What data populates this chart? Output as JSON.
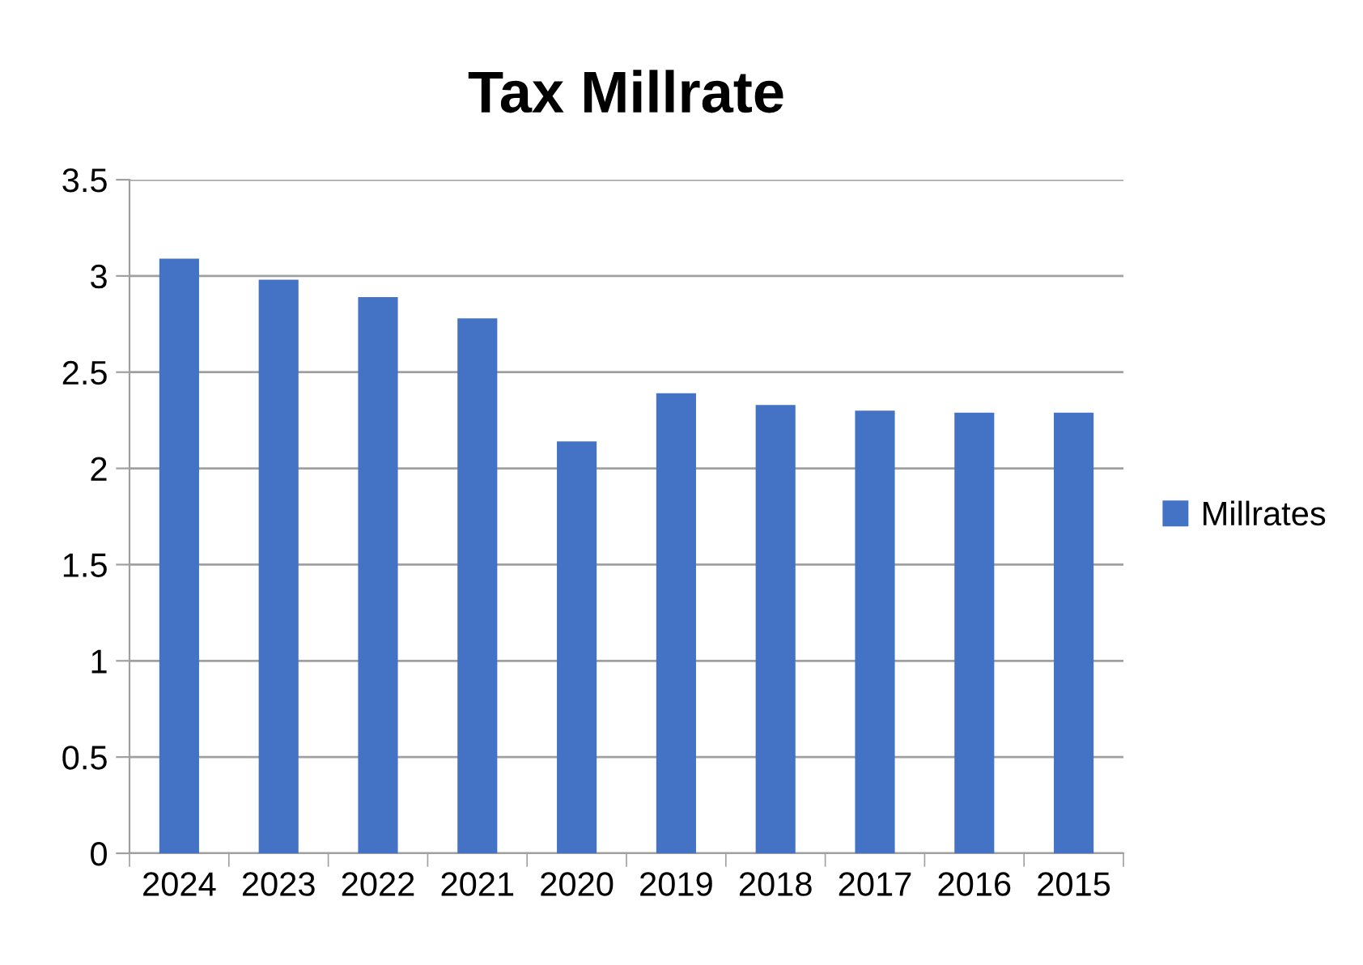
{
  "chart_data": {
    "type": "bar",
    "title": "Tax Millrate",
    "categories": [
      "2024",
      "2023",
      "2022",
      "2021",
      "2020",
      "2019",
      "2018",
      "2017",
      "2016",
      "2015"
    ],
    "series": [
      {
        "name": "Millrates",
        "color": "#4472c4",
        "values": [
          3.09,
          2.98,
          2.89,
          2.78,
          2.14,
          2.39,
          2.33,
          2.3,
          2.29,
          2.29
        ]
      }
    ],
    "ylim": [
      0,
      3.5
    ],
    "yticks": [
      0,
      0.5,
      1,
      1.5,
      2,
      2.5,
      3,
      3.5
    ],
    "grid": "y",
    "legend": "right"
  }
}
